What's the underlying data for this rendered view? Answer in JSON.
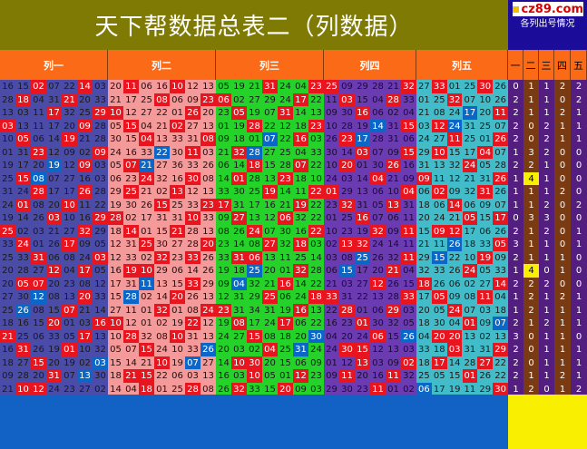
{
  "title": "天下帮数据总表二（列数据）",
  "logo": "cz89.com",
  "subtitle": "各列出号情况",
  "column_headers": [
    "列一",
    "列二",
    "列三",
    "列四",
    "列五"
  ],
  "stat_headers": [
    "一",
    "二",
    "三",
    "四",
    "五"
  ],
  "colors": {
    "title_bg": "#7f7a04",
    "header_bg": "#fb6a17",
    "col1_bg": "#4b4ba8",
    "col2_bg": "#f49a9a",
    "col3_bg": "#24d22a",
    "col4_bg": "#6b3bb2",
    "col5_bg": "#42bcc9",
    "stat_bg": "#541e81",
    "highlight": "#e8141e",
    "footer_bg": "#1261c4",
    "footer_stat_bg": "#f8f000"
  },
  "rows": [
    [
      "16 15 02 07 22 14 03",
      "20 11 06 16 10 12 13",
      "05 19 21 31 24 04 23",
      "25 09 29 28 21 32 08",
      "27 33 01 25 30 26",
      "0 1 1 2 2"
    ],
    [
      "28 18 04 31 21 20 33",
      "21 17 25 08 06 09 23",
      "06 02 27 29 24 17 22",
      "11 03 15 04 28 33 14",
      "01 25 32 07 10 26",
      "2 1 1 0 2"
    ],
    [
      "13 03 11 17 32 25 29",
      "10 12 27 22 01 26 20",
      "23 05 19 07 31 14 13",
      "09 30 16 06 02 04 16",
      "21 08 24 17 20 11",
      "2 1 1 2 1"
    ],
    [
      "03 13 11 17 20 09 28",
      "05 15 04 21 02 27 13",
      "01 19 28 22 12 18 23",
      "10 28 19 14 31 15 32",
      "03 12 24 31 25 07",
      "2 0 2 1 1"
    ],
    [
      "10 05 06 14 19 21 28",
      "30 15 04 13 33 31 08",
      "09 18 01 07 22 16 03",
      "26 23 17 28 31 06 02",
      "24 27 11 25 01 26",
      "2 0 2 1 1"
    ],
    [
      "01 31 23 12 09 02 09",
      "24 16 33 22 30 11 03",
      "21 32 28 27 25 04 33",
      "30 14 03 07 09 15 32",
      "29 10 15 17 04 07",
      "1 3 2 0 0"
    ],
    [
      "19 17 20 19 12 09 03",
      "05 07 21 27 36 33 26",
      "06 14 18 15 28 07 22",
      "10 20 01 30 26 16 20",
      "31 13 32 24 05 28",
      "2 2 1 0 0"
    ],
    [
      "25 15 08 07 27 16 03",
      "06 23 24 32 16 30 08",
      "14 01 28 13 23 18 10",
      "24 03 14 04 21 09 32",
      "09 11 12 21 31 26",
      "1 4 1 0 0"
    ],
    [
      "31 24 28 17 17 26 28",
      "29 25 21 02 13 12 13",
      "33 30 25 19 14 11 22",
      "01 29 13 06 10 04 18",
      "06 02 09 32 31 26",
      "1 1 1 2 0"
    ],
    [
      "24 01 08 20 10 11 22",
      "19 30 26 15 25 33 23",
      "17 31 17 16 21 19 22",
      "23 32 31 05 13 31 07",
      "18 06 14 06 09 07",
      "1 1 2 0 2"
    ],
    [
      "19 14 26 03 10 16 29",
      "28 02 17 31 31 10 33",
      "09 27 13 12 06 32 22",
      "01 25 16 07 06 11 05",
      "20 24 21 05 15 17",
      "0 3 3 0 0"
    ],
    [
      "25 02 03 21 27 32 29",
      "18 14 01 15 21 28 13",
      "08 26 24 07 30 16 22",
      "10 23 19 32 09 11 11",
      "15 09 12 17 06 26",
      "2 1 2 0 1"
    ],
    [
      "33 24 01 26 17 09 05",
      "12 31 25 30 27 28 20",
      "23 14 08 27 32 18 03",
      "02 13 32 24 14 11 18",
      "21 11 26 18 33 05",
      "3 1 1 0 1"
    ],
    [
      "25 33 31 06 08 24 03",
      "12 33 02 32 23 33 26",
      "33 31 06 13 11 25 14",
      "03 08 25 26 32 11 22",
      "29 15 22 10 19 09",
      "2 1 1 1 0"
    ],
    [
      "20 28 27 12 04 17 05",
      "16 19 10 29 06 14 26",
      "19 18 25 20 01 32 28",
      "06 15 17 20 21 04 03",
      "32 33 26 24 05 33",
      "1 4 0 1 0"
    ],
    [
      "20 05 07 20 23 08 12",
      "17 31 11 13 15 33 29",
      "09 04 32 21 16 14 22",
      "21 03 27 12 26 15 16",
      "18 26 06 02 27 14",
      "2 2 2 0 0"
    ],
    [
      "27 30 12 08 13 20 33",
      "15 28 02 14 20 26 13",
      "12 31 29 25 06 24 18",
      "33 31 22 13 28 33 13",
      "17 05 09 08 11 04",
      "1 2 1 2 1"
    ],
    [
      "25 26 08 15 07 21 14",
      "27 11 01 32 01 08 24",
      "23 31 34 31 19 16 13",
      "22 28 01 06 29 03 13",
      "20 05 24 07 03 18",
      "1 2 1 1 1"
    ],
    [
      "18 16 15 20 01 03 16",
      "10 12 01 02 19 22 12",
      "19 08 17 24 17 06 22",
      "16 23 01 30 32 05 21",
      "18 30 04 01 09 07",
      "2 1 2 1 1"
    ],
    [
      "21 25 06 33 05 17 13",
      "10 28 32 08 10 31 13",
      "24 27 15 08 18 20 30",
      "04 20 24 06 15 26 16",
      "04 20 20 13 02 13",
      "3 0 1 1 0"
    ],
    [
      "16 31 26 19 01 10 32",
      "05 07 15 24 10 33 26",
      "20 03 02 04 25 31 24",
      "24 30 15 12 13 03 07",
      "33 18 03 31 31 29",
      "2 0 1 1 1"
    ],
    [
      "18 27 15 20 19 02 03",
      "15 14 21 10 19 07 27",
      "14 10 30 20 15 06 09",
      "01 12 13 03 09 02 10",
      "18 17 14 28 27 22",
      "2 0 1 1 1"
    ],
    [
      "09 28 20 31 07 13 30",
      "18 21 15 22 06 03 13",
      "16 03 10 05 01 12 23",
      "09 11 20 16 11 32 11",
      "25 05 15 01 26 22",
      "2 1 1 2 1"
    ],
    [
      "21 10 12 24 23 27 02",
      "14 04 18 01 25 28 08",
      "26 32 33 15 20 09 03",
      "29 30 23 11 01 02 23",
      "06 17 19 11 29 30",
      "1 2 0 1 2"
    ]
  ]
}
